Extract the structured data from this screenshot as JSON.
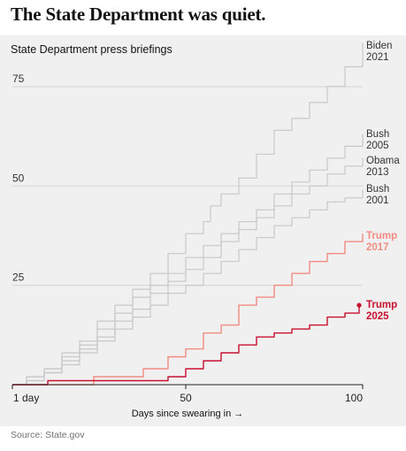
{
  "headline": "The State Department was quiet.",
  "source": "Source: State.gov",
  "chart_data": {
    "type": "line",
    "title": "State Department press briefings",
    "xlabel": "Days since swearing in →",
    "x_ticks": [
      "1 day",
      "50",
      "100"
    ],
    "y_ticks": [
      25,
      50,
      75
    ],
    "xlim": [
      1,
      100
    ],
    "ylim": [
      0,
      85
    ],
    "grid": "horizontal",
    "colors": {
      "others": "#c8c8c8",
      "trump2017": "#f28b82",
      "trump2025": "#c8102e"
    },
    "series": [
      {
        "name": "Biden 2021",
        "label_1": "Biden",
        "label_2": "2021",
        "color": "#c8c8c8",
        "points": [
          [
            1,
            0
          ],
          [
            5,
            2
          ],
          [
            10,
            4
          ],
          [
            15,
            8
          ],
          [
            20,
            11
          ],
          [
            25,
            16
          ],
          [
            30,
            20
          ],
          [
            35,
            24
          ],
          [
            40,
            28
          ],
          [
            45,
            33
          ],
          [
            50,
            38
          ],
          [
            55,
            41
          ],
          [
            57,
            45
          ],
          [
            60,
            48
          ],
          [
            65,
            52
          ],
          [
            70,
            58
          ],
          [
            75,
            64
          ],
          [
            80,
            67
          ],
          [
            85,
            71
          ],
          [
            90,
            75
          ],
          [
            95,
            80
          ],
          [
            100,
            86
          ]
        ]
      },
      {
        "name": "Bush 2005",
        "label_1": "Bush",
        "label_2": "2005",
        "color": "#c8c8c8",
        "points": [
          [
            1,
            0
          ],
          [
            5,
            2
          ],
          [
            10,
            4
          ],
          [
            15,
            7
          ],
          [
            20,
            10
          ],
          [
            25,
            14
          ],
          [
            30,
            18
          ],
          [
            35,
            22
          ],
          [
            40,
            25
          ],
          [
            45,
            28
          ],
          [
            50,
            32
          ],
          [
            55,
            35
          ],
          [
            60,
            38
          ],
          [
            65,
            41
          ],
          [
            70,
            44
          ],
          [
            75,
            48
          ],
          [
            80,
            51
          ],
          [
            85,
            54
          ],
          [
            90,
            57
          ],
          [
            95,
            60
          ],
          [
            100,
            63
          ]
        ]
      },
      {
        "name": "Obama 2013",
        "label_1": "Obama",
        "label_2": "2013",
        "color": "#c8c8c8",
        "points": [
          [
            1,
            0
          ],
          [
            5,
            1
          ],
          [
            10,
            3
          ],
          [
            15,
            6
          ],
          [
            20,
            9
          ],
          [
            25,
            12
          ],
          [
            30,
            16
          ],
          [
            35,
            19
          ],
          [
            40,
            23
          ],
          [
            45,
            26
          ],
          [
            50,
            29
          ],
          [
            55,
            32
          ],
          [
            60,
            36
          ],
          [
            65,
            39
          ],
          [
            70,
            42
          ],
          [
            75,
            45
          ],
          [
            80,
            48
          ],
          [
            85,
            50
          ],
          [
            90,
            53
          ],
          [
            95,
            55
          ],
          [
            100,
            57
          ]
        ]
      },
      {
        "name": "Bush 2001",
        "label_1": "Bush",
        "label_2": "2001",
        "color": "#c8c8c8",
        "points": [
          [
            1,
            0
          ],
          [
            5,
            1
          ],
          [
            10,
            3
          ],
          [
            15,
            5
          ],
          [
            20,
            8
          ],
          [
            25,
            11
          ],
          [
            30,
            14
          ],
          [
            35,
            17
          ],
          [
            40,
            20
          ],
          [
            45,
            23
          ],
          [
            50,
            25
          ],
          [
            55,
            28
          ],
          [
            60,
            31
          ],
          [
            65,
            34
          ],
          [
            70,
            37
          ],
          [
            75,
            40
          ],
          [
            80,
            42
          ],
          [
            85,
            44
          ],
          [
            90,
            46
          ],
          [
            95,
            47
          ],
          [
            100,
            49
          ]
        ]
      },
      {
        "name": "Trump 2017",
        "label_1": "Trump",
        "label_2": "2017",
        "color": "#f28b82",
        "points": [
          [
            1,
            0
          ],
          [
            10,
            0
          ],
          [
            24,
            2
          ],
          [
            38,
            4
          ],
          [
            45,
            7
          ],
          [
            50,
            9
          ],
          [
            55,
            13
          ],
          [
            60,
            15
          ],
          [
            65,
            20
          ],
          [
            70,
            22
          ],
          [
            75,
            25
          ],
          [
            80,
            28
          ],
          [
            85,
            31
          ],
          [
            90,
            33
          ],
          [
            95,
            36
          ],
          [
            100,
            38
          ]
        ]
      },
      {
        "name": "Trump 2025",
        "label_1": "Trump",
        "label_2": "2025",
        "color": "#c8102e",
        "points": [
          [
            1,
            0
          ],
          [
            10,
            0
          ],
          [
            11,
            1
          ],
          [
            25,
            1
          ],
          [
            35,
            1
          ],
          [
            45,
            2
          ],
          [
            50,
            4
          ],
          [
            55,
            6
          ],
          [
            60,
            8
          ],
          [
            65,
            10
          ],
          [
            70,
            12
          ],
          [
            75,
            13
          ],
          [
            80,
            14
          ],
          [
            85,
            15
          ],
          [
            90,
            17
          ],
          [
            95,
            18
          ],
          [
            99,
            20
          ]
        ]
      }
    ]
  }
}
